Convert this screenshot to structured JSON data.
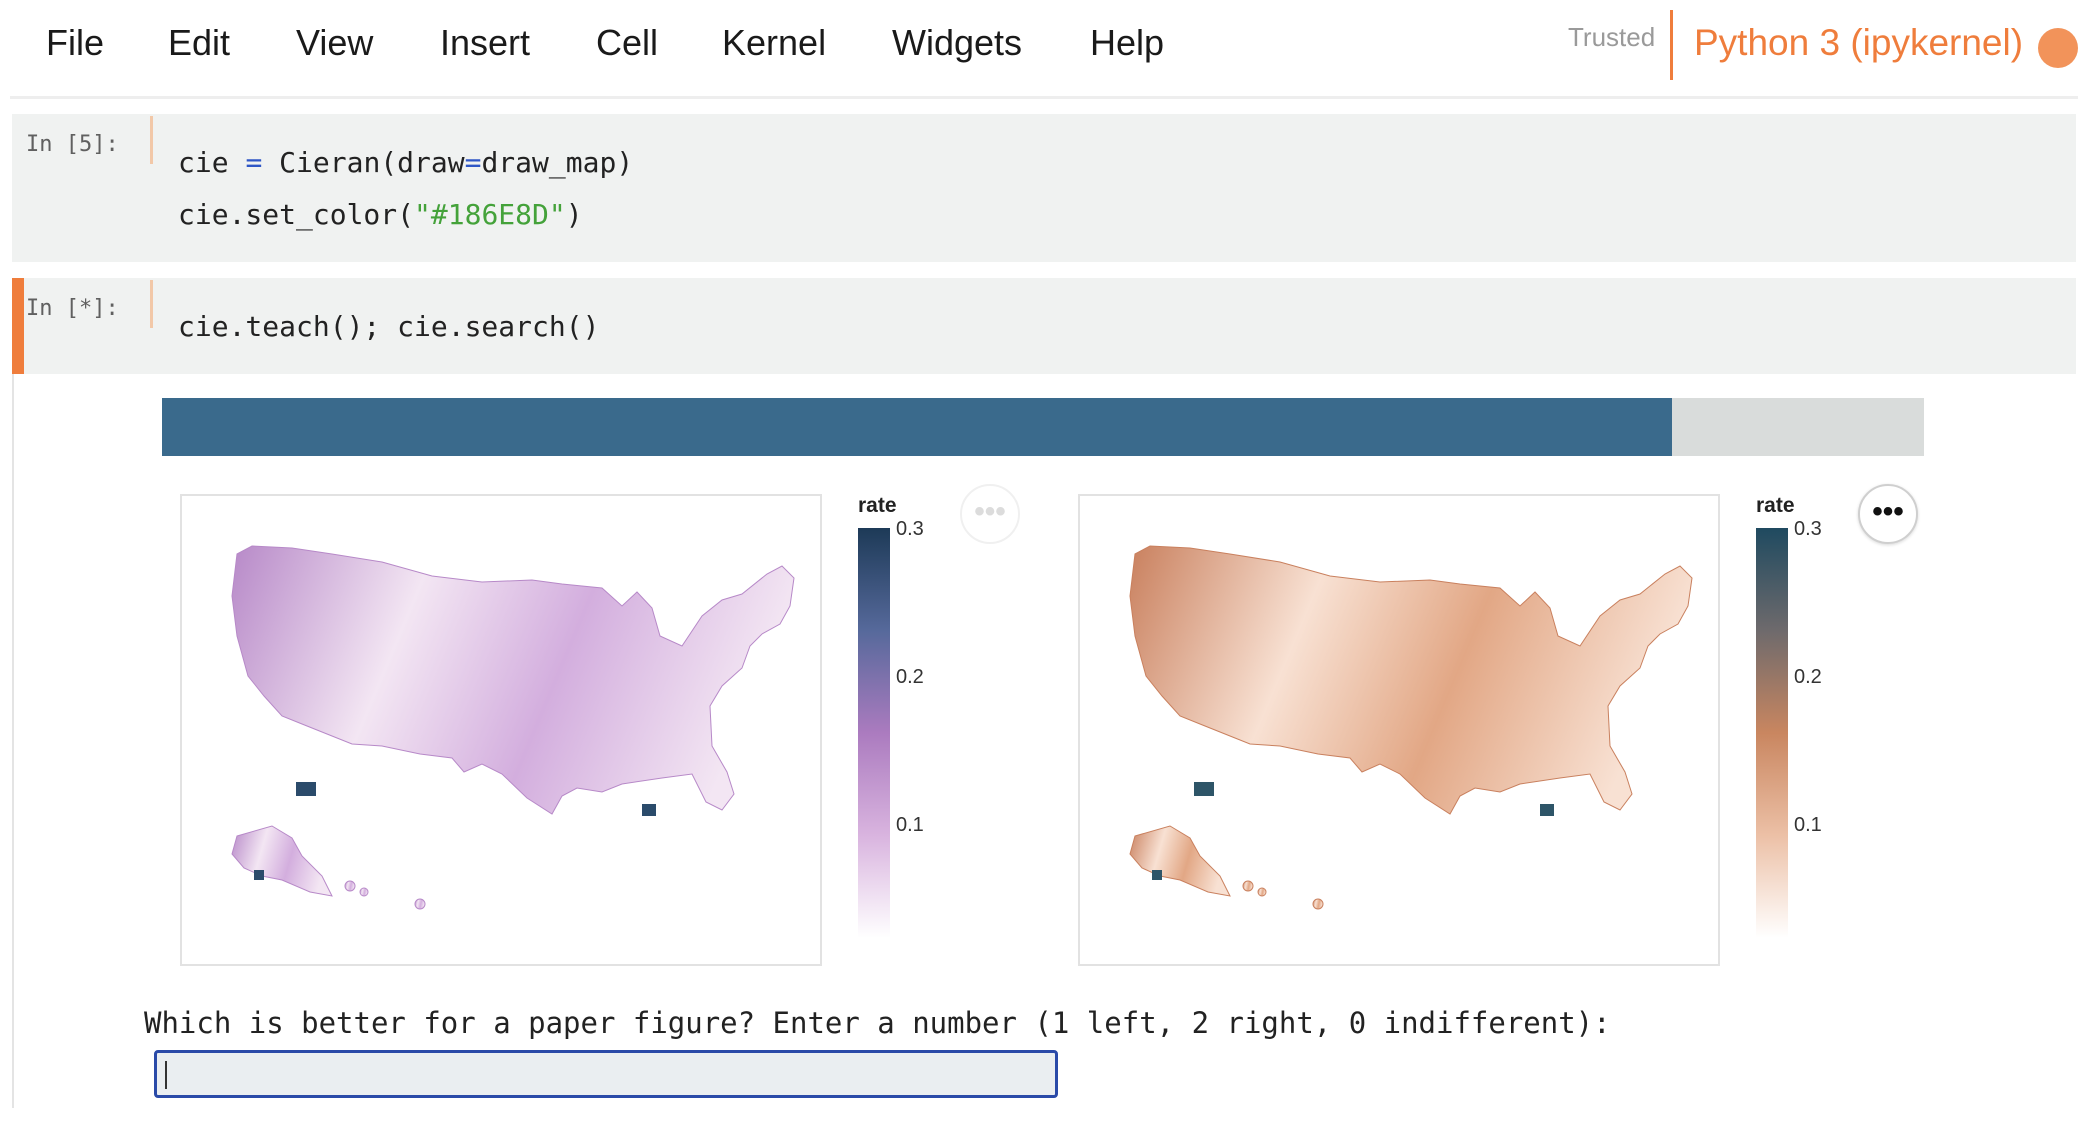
{
  "menubar": {
    "items": [
      "File",
      "Edit",
      "View",
      "Insert",
      "Cell",
      "Kernel",
      "Widgets",
      "Help"
    ],
    "trusted": "Trusted",
    "kernel_name": "Python 3 (ipykernel)",
    "kernel_status_color": "#f2935a"
  },
  "cells": [
    {
      "prompt": "In [5]:",
      "lines": [
        {
          "a": "cie ",
          "op": "=",
          "b": " Cieran(draw",
          "op2": "=",
          "c": "draw_map)"
        },
        {
          "a": "cie.set_color(",
          "str": "\"#186E8D\"",
          "c": ")"
        }
      ]
    },
    {
      "prompt": "In [*]:",
      "code": "cie.teach(); cie.search()",
      "active": true
    }
  ],
  "output": {
    "progress": 0.857,
    "progress_color": "#3a6a8c",
    "maps": [
      {
        "legend_title": "rate",
        "ticks": [
          "0.3",
          "0.2",
          "0.1"
        ],
        "ramp": [
          "#1d3a57",
          "#56699b",
          "#ab7bbf",
          "#d9b4df",
          "#ffffff"
        ],
        "fill_light": "#f3e6f3",
        "fill_mid": "#d3aede",
        "fill_dark": "#b789c8",
        "hotspot": "#2b4b6b",
        "menu": "faded"
      },
      {
        "legend_title": "rate",
        "ticks": [
          "0.3",
          "0.2",
          "0.1"
        ],
        "ramp": [
          "#1f4a60",
          "#6e6a6c",
          "#c98660",
          "#ecc0a6",
          "#ffffff"
        ],
        "fill_light": "#f8e1d3",
        "fill_mid": "#e2a785",
        "fill_dark": "#c9805e",
        "hotspot": "#2e5568",
        "menu": "active"
      }
    ],
    "question": "Which is better for a paper figure? Enter a number (1 left, 2 right, 0 indifferent):",
    "answer_value": ""
  }
}
